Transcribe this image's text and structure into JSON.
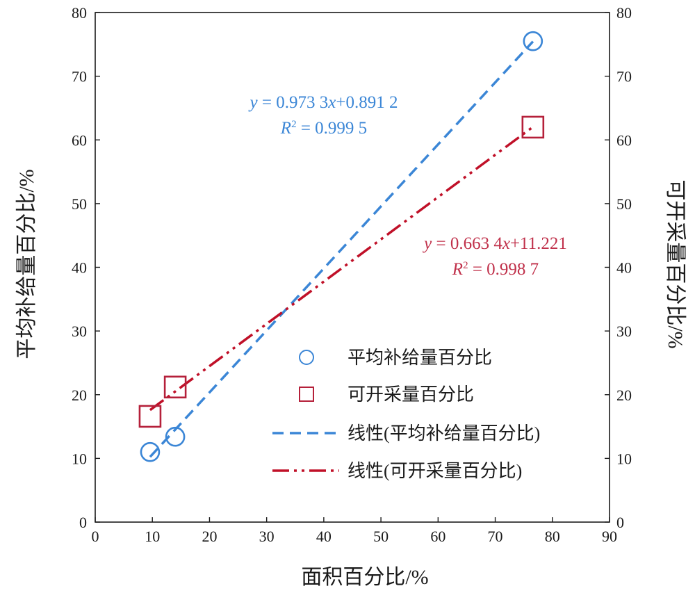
{
  "chart_data": {
    "type": "scatter",
    "xlabel": "面积百分比/%",
    "ylabel_left": "平均补给量百分比/%",
    "ylabel_right": "可开采量百分比/%",
    "xlim": [
      0,
      90
    ],
    "ylim": [
      0,
      80
    ],
    "xticks": [
      0,
      10,
      20,
      30,
      40,
      50,
      60,
      70,
      80,
      90
    ],
    "yticks": [
      0,
      10,
      20,
      30,
      40,
      50,
      60,
      70,
      80
    ],
    "grid": false,
    "legend_position": "lower-right",
    "series": [
      {
        "name": "平均补给量百分比",
        "marker": "circle",
        "color": "#3b86d6",
        "points": [
          [
            9.6,
            11.0
          ],
          [
            14.0,
            13.4
          ],
          [
            76.6,
            75.5
          ]
        ]
      },
      {
        "name": "可开采量百分比",
        "marker": "square",
        "color": "#b5203a",
        "points": [
          [
            9.6,
            16.6
          ],
          [
            14.0,
            21.2
          ],
          [
            76.6,
            62.0
          ]
        ]
      }
    ],
    "trendlines": [
      {
        "name": "线性(平均补给量百分比)",
        "style": "dash",
        "color": "#3b86d6",
        "slope": 0.9733,
        "intercept": 0.8912,
        "x_range": [
          9.6,
          76.6
        ],
        "equation": {
          "y": "y",
          "rest": " = 0.973 3",
          "x": "x",
          "tail": "+0.891 2"
        },
        "r2": {
          "r": "R",
          "sup": "2",
          "value": " = 0.999 5"
        }
      },
      {
        "name": "线性(可开采量百分比)",
        "style": "dash-dot-dot",
        "color": "#c01028",
        "slope": 0.6634,
        "intercept": 11.221,
        "x_range": [
          9.6,
          76.6
        ],
        "equation": {
          "y": "y",
          "rest": " = 0.663 4",
          "x": "x",
          "tail": "+11.221"
        },
        "r2": {
          "r": "R",
          "sup": "2",
          "value": " = 0.998 7"
        }
      }
    ],
    "equation_color_blue": "#3b86d6",
    "equation_color_red": "#c0304a"
  }
}
